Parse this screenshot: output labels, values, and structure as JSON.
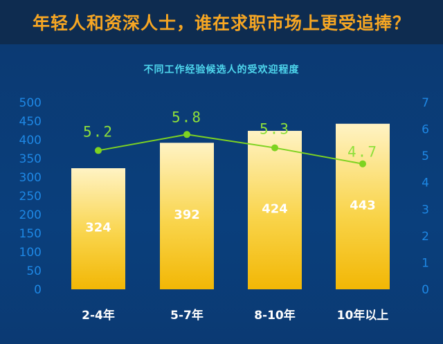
{
  "headline": "年轻人和资深人士，谁在求职市场上更受追捧？",
  "chart_data": {
    "type": "bar",
    "title": "不同工作经验候选人的受欢迎程度",
    "categories": [
      "2-4年",
      "5-7年",
      "8-10年",
      "10年以上"
    ],
    "series": [
      {
        "type": "bar",
        "values": [
          324,
          392,
          424,
          443
        ],
        "axis": "left"
      },
      {
        "type": "line",
        "values": [
          5.2,
          5.8,
          5.3,
          4.7
        ],
        "axis": "right"
      }
    ],
    "y_left": {
      "range": [
        0,
        500
      ],
      "ticks": [
        "0",
        "50",
        "100",
        "150",
        "200",
        "250",
        "300",
        "350",
        "400",
        "450",
        "500"
      ]
    },
    "y_right": {
      "range": [
        0,
        7
      ],
      "ticks": [
        "0",
        "1",
        "2",
        "3",
        "4",
        "5",
        "6",
        "7"
      ]
    },
    "grid": false,
    "legend": "none",
    "colors": {
      "bar_top": "#fff3c4",
      "bar_bottom": "#f2b705",
      "line": "#7ed321",
      "axis_text": "#1e88e5",
      "title": "#4fd8ee",
      "headline": "#f6a623"
    }
  }
}
